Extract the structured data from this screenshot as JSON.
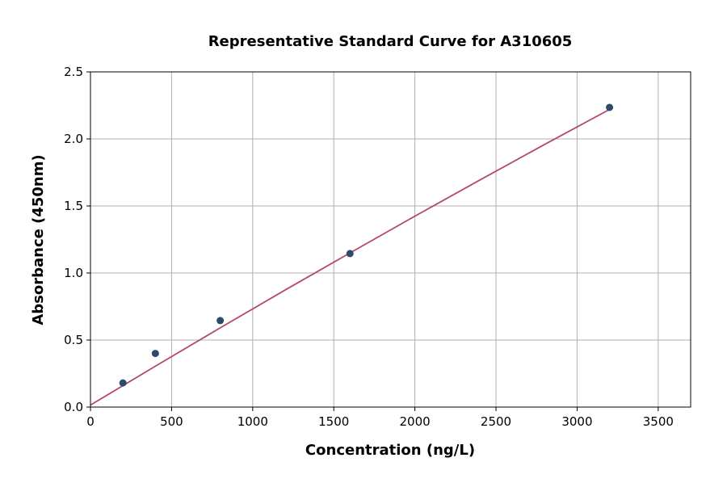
{
  "chart_data": {
    "type": "scatter",
    "title": "Representative Standard Curve for A310605",
    "xlabel": "Concentration (ng/L)",
    "ylabel": "Absorbance (450nm)",
    "xlim": [
      0,
      3700
    ],
    "ylim": [
      0,
      2.5
    ],
    "xticks": [
      0,
      500,
      1000,
      1500,
      2000,
      2500,
      3000,
      3500
    ],
    "yticks": [
      0.0,
      0.5,
      1.0,
      1.5,
      2.0,
      2.5
    ],
    "ytick_labels": [
      "0.0",
      "0.5",
      "1.0",
      "1.5",
      "2.0",
      "2.5"
    ],
    "grid": true,
    "points": {
      "x": [
        200,
        400,
        800,
        1600,
        3200
      ],
      "y": [
        0.18,
        0.4,
        0.645,
        1.145,
        2.235
      ],
      "color": "#2e4a6b"
    },
    "fit_curve": {
      "x": [
        0,
        400,
        800,
        1200,
        1600,
        2000,
        2400,
        2800,
        3200
      ],
      "y": [
        0.015,
        0.305,
        0.591,
        0.873,
        1.15,
        1.424,
        1.693,
        1.959,
        2.22
      ],
      "color": "#b5476e"
    }
  }
}
